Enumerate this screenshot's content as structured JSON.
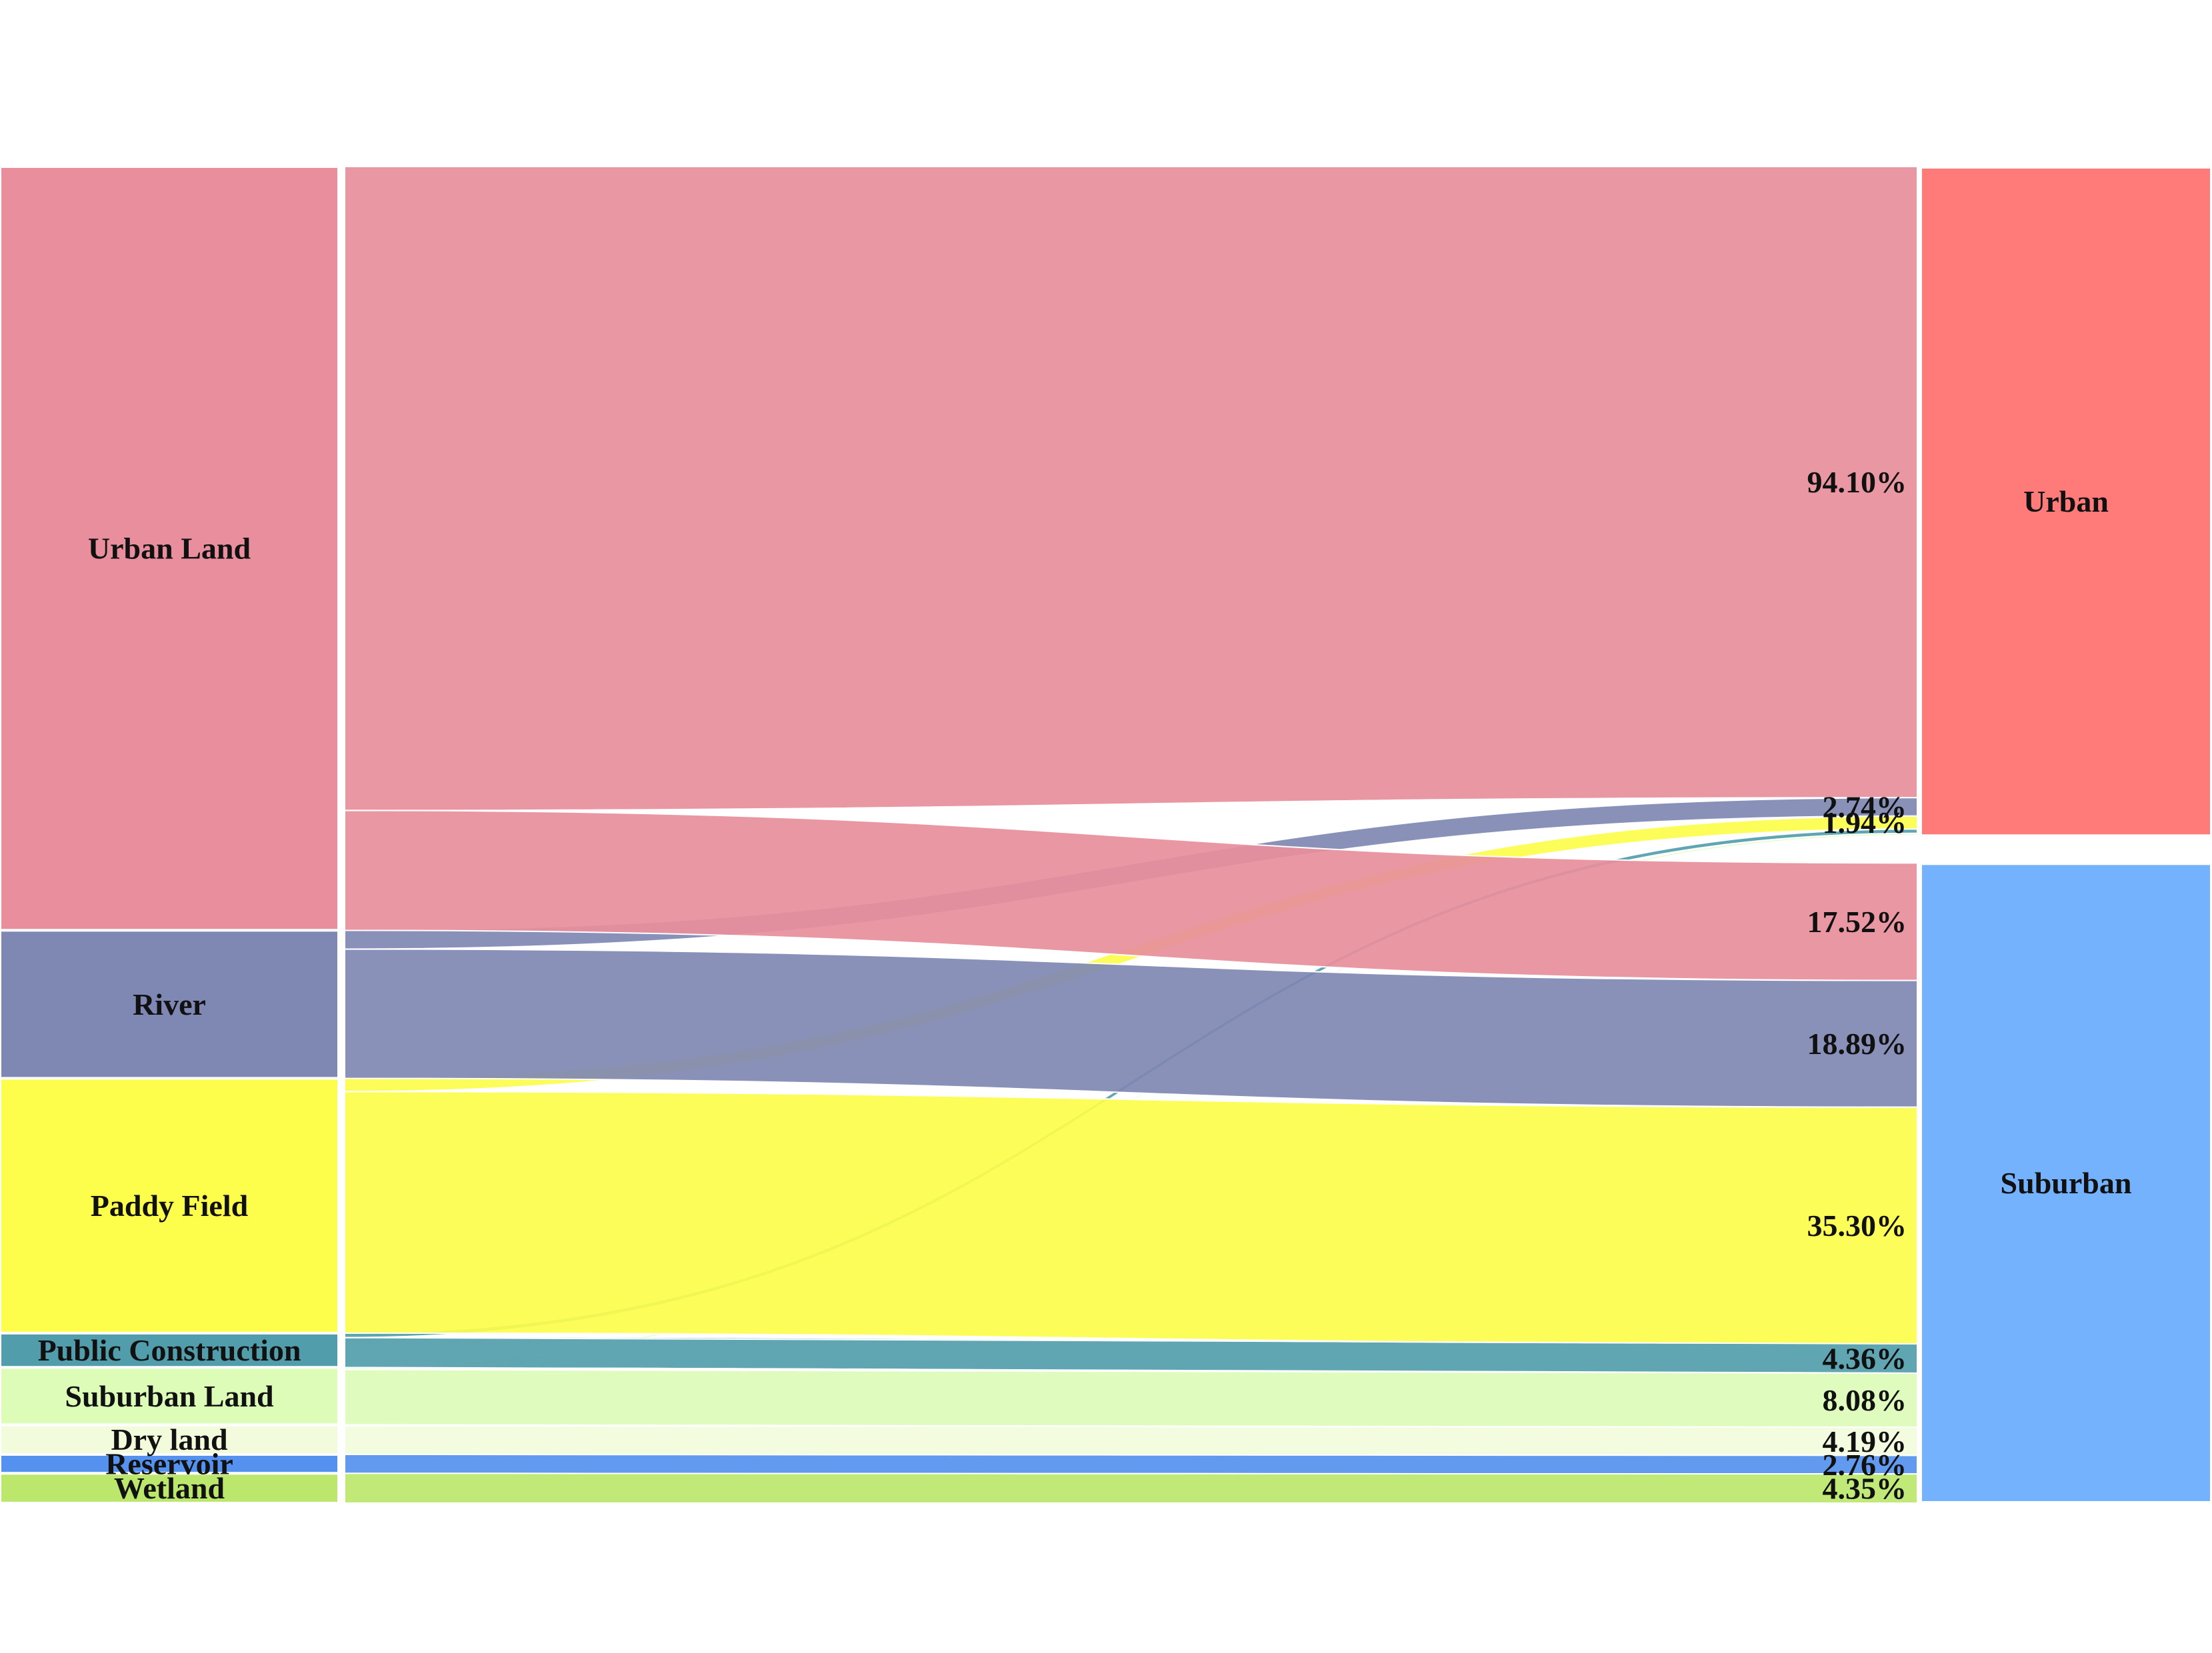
{
  "chart_data": {
    "type": "sankey",
    "title": "",
    "unit": "%",
    "sources": [
      {
        "name": "Urban Land",
        "color": "#e88e9c"
      },
      {
        "name": "River",
        "color": "#7f88b3"
      },
      {
        "name": "Paddy Field",
        "color": "#fdfd4c"
      },
      {
        "name": "Public Construction",
        "color": "#529dab"
      },
      {
        "name": "Suburban Land",
        "color": "#dcfcb8"
      },
      {
        "name": "Dry land",
        "color": "#f2fcdc"
      },
      {
        "name": "Reservoir",
        "color": "#5591ee"
      },
      {
        "name": "Wetland",
        "color": "#bbe76c"
      }
    ],
    "targets": [
      {
        "name": "Urban",
        "color": "#ff7b79"
      },
      {
        "name": "Suburban",
        "color": "#74b2fe"
      }
    ],
    "flows": [
      {
        "source": "Urban Land",
        "target": "Urban",
        "value": 94.1,
        "label": "94.10%"
      },
      {
        "source": "River",
        "target": "Urban",
        "value": 2.74,
        "label": "2.74%"
      },
      {
        "source": "Paddy Field",
        "target": "Urban",
        "value": 1.94,
        "label": "1.94%"
      },
      {
        "source": "Public Construction",
        "target": "Urban",
        "value": 0.65,
        "label": ""
      },
      {
        "source": "Suburban Land",
        "target": "Urban",
        "value": 0.3,
        "label": ""
      },
      {
        "source": "Dry land",
        "target": "Urban",
        "value": 0.15,
        "label": ""
      },
      {
        "source": "Urban Land",
        "target": "Suburban",
        "value": 17.52,
        "label": "17.52%"
      },
      {
        "source": "River",
        "target": "Suburban",
        "value": 18.89,
        "label": "18.89%"
      },
      {
        "source": "Paddy Field",
        "target": "Suburban",
        "value": 35.3,
        "label": "35.30%"
      },
      {
        "source": "Public Construction",
        "target": "Suburban",
        "value": 4.36,
        "label": "4.36%"
      },
      {
        "source": "Suburban Land",
        "target": "Suburban",
        "value": 8.08,
        "label": "8.08%"
      },
      {
        "source": "Dry land",
        "target": "Suburban",
        "value": 4.19,
        "label": "4.19%"
      },
      {
        "source": "Reservoir",
        "target": "Suburban",
        "value": 2.76,
        "label": "2.76%"
      },
      {
        "source": "Wetland",
        "target": "Suburban",
        "value": 4.35,
        "label": "4.35%"
      }
    ]
  }
}
